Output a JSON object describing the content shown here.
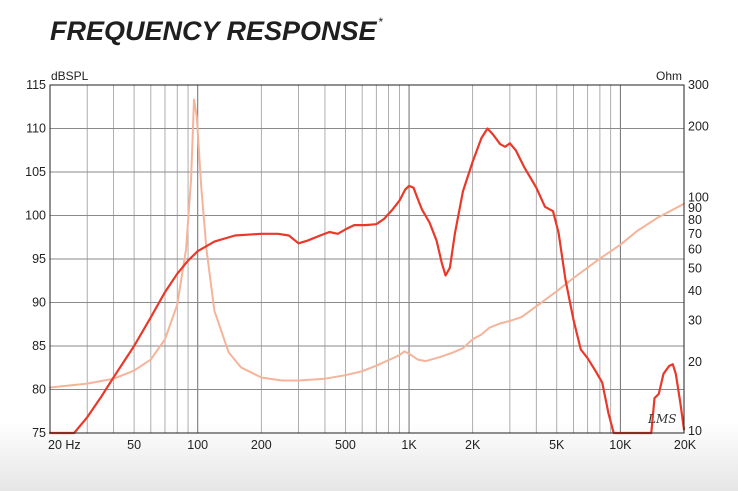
{
  "chart_data": {
    "type": "line",
    "title": "FREQUENCY RESPONSE",
    "title_mark": "*",
    "xscale": "log",
    "xlim": [
      20,
      20000
    ],
    "x_ticks": [
      {
        "value": 20,
        "label": "20  Hz"
      },
      {
        "value": 50,
        "label": "50"
      },
      {
        "value": 100,
        "label": "100"
      },
      {
        "value": 200,
        "label": "200"
      },
      {
        "value": 500,
        "label": "500"
      },
      {
        "value": 1000,
        "label": "1K"
      },
      {
        "value": 2000,
        "label": "2K"
      },
      {
        "value": 5000,
        "label": "5K"
      },
      {
        "value": 10000,
        "label": "10K"
      },
      {
        "value": 20000,
        "label": "20K"
      }
    ],
    "ylabel_left": "dBSPL",
    "ylim_left": [
      75,
      115
    ],
    "y_ticks_left": [
      75,
      80,
      85,
      90,
      95,
      100,
      105,
      110,
      115
    ],
    "ylabel_right": "Ohm",
    "yscale_right": "log",
    "ylim_right": [
      10,
      300
    ],
    "y_ticks_right": [
      10,
      20,
      30,
      40,
      50,
      60,
      70,
      80,
      90,
      100,
      200,
      300
    ],
    "grid": true,
    "logo_text": "LMS",
    "series": [
      {
        "axis": "left",
        "color": "#e8392a",
        "points": [
          [
            20,
            75
          ],
          [
            26,
            75
          ],
          [
            30,
            76.8
          ],
          [
            35,
            79.2
          ],
          [
            40,
            81.4
          ],
          [
            50,
            85
          ],
          [
            60,
            88.3
          ],
          [
            70,
            91.2
          ],
          [
            80,
            93.3
          ],
          [
            90,
            94.8
          ],
          [
            100,
            95.9
          ],
          [
            120,
            97
          ],
          [
            150,
            97.7
          ],
          [
            200,
            97.9
          ],
          [
            240,
            97.9
          ],
          [
            270,
            97.7
          ],
          [
            300,
            96.8
          ],
          [
            330,
            97.1
          ],
          [
            380,
            97.7
          ],
          [
            420,
            98.1
          ],
          [
            460,
            97.9
          ],
          [
            500,
            98.4
          ],
          [
            550,
            98.9
          ],
          [
            620,
            98.9
          ],
          [
            700,
            99
          ],
          [
            760,
            99.6
          ],
          [
            830,
            100.6
          ],
          [
            900,
            101.7
          ],
          [
            960,
            103
          ],
          [
            1000,
            103.4
          ],
          [
            1050,
            103.2
          ],
          [
            1100,
            101.9
          ],
          [
            1150,
            100.7
          ],
          [
            1250,
            99.2
          ],
          [
            1350,
            97.1
          ],
          [
            1430,
            94.5
          ],
          [
            1490,
            93.1
          ],
          [
            1560,
            94
          ],
          [
            1650,
            98
          ],
          [
            1800,
            102.8
          ],
          [
            2000,
            106.2
          ],
          [
            2200,
            108.9
          ],
          [
            2350,
            110
          ],
          [
            2500,
            109.3
          ],
          [
            2700,
            108.2
          ],
          [
            2850,
            107.9
          ],
          [
            3000,
            108.3
          ],
          [
            3200,
            107.5
          ],
          [
            3500,
            105.6
          ],
          [
            4000,
            103.2
          ],
          [
            4400,
            101
          ],
          [
            4800,
            100.5
          ],
          [
            5100,
            98
          ],
          [
            5500,
            92.6
          ],
          [
            6000,
            88
          ],
          [
            6500,
            84.6
          ],
          [
            7000,
            83.6
          ],
          [
            7600,
            82.2
          ],
          [
            8200,
            80.8
          ],
          [
            8800,
            77.2
          ],
          [
            9300,
            75
          ],
          [
            14000,
            75
          ],
          [
            14500,
            79
          ],
          [
            15200,
            79.5
          ],
          [
            16000,
            81.8
          ],
          [
            17000,
            82.7
          ],
          [
            17700,
            82.9
          ],
          [
            18300,
            81.8
          ],
          [
            19200,
            78.5
          ],
          [
            20000,
            75.4
          ]
        ]
      },
      {
        "axis": "right",
        "color": "#f5b49a",
        "points": [
          [
            20,
            15.6
          ],
          [
            30,
            16.2
          ],
          [
            40,
            17
          ],
          [
            50,
            18.4
          ],
          [
            60,
            20.5
          ],
          [
            70,
            25
          ],
          [
            80,
            35
          ],
          [
            88,
            60
          ],
          [
            93,
            120
          ],
          [
            96,
            260
          ],
          [
            99,
            220
          ],
          [
            104,
            110
          ],
          [
            110,
            60
          ],
          [
            120,
            33
          ],
          [
            140,
            22
          ],
          [
            160,
            19
          ],
          [
            200,
            17.2
          ],
          [
            250,
            16.7
          ],
          [
            300,
            16.7
          ],
          [
            400,
            17
          ],
          [
            500,
            17.6
          ],
          [
            600,
            18.3
          ],
          [
            700,
            19.3
          ],
          [
            800,
            20.4
          ],
          [
            900,
            21.4
          ],
          [
            950,
            22.2
          ],
          [
            1000,
            21.7
          ],
          [
            1100,
            20.5
          ],
          [
            1200,
            20.2
          ],
          [
            1400,
            21
          ],
          [
            1600,
            21.9
          ],
          [
            1800,
            22.9
          ],
          [
            2000,
            25
          ],
          [
            2200,
            26.2
          ],
          [
            2400,
            28
          ],
          [
            2700,
            29.2
          ],
          [
            3000,
            29.9
          ],
          [
            3400,
            31
          ],
          [
            4000,
            34.5
          ],
          [
            5000,
            40
          ],
          [
            6000,
            45.5
          ],
          [
            8000,
            55
          ],
          [
            10000,
            63
          ],
          [
            12000,
            72
          ],
          [
            15000,
            82
          ],
          [
            20000,
            94
          ]
        ]
      }
    ]
  }
}
